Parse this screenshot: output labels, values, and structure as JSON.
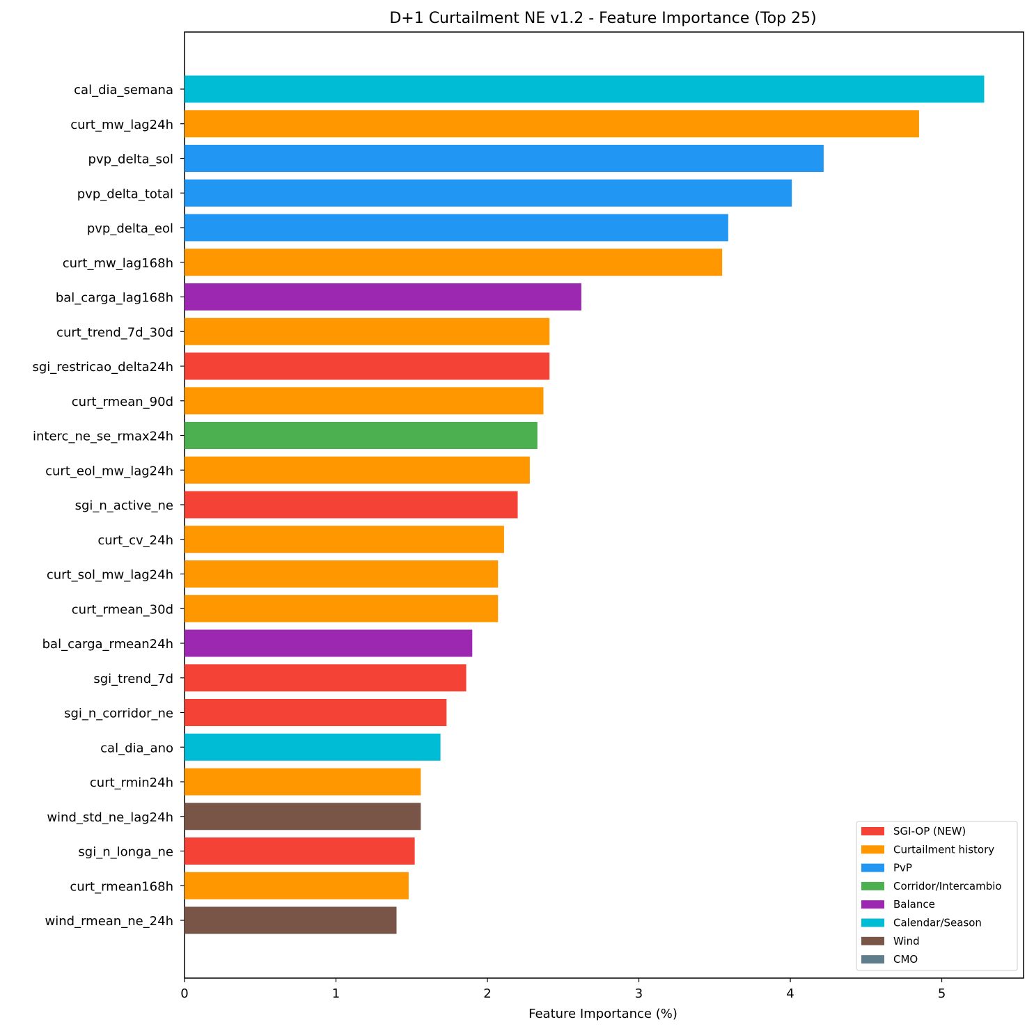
{
  "chart_data": {
    "type": "bar",
    "orientation": "horizontal",
    "title": "D+1 Curtailment NE v1.2 - Feature Importance (Top 25)",
    "xlabel": "Feature Importance (%)",
    "ylabel": "",
    "xlim": [
      0,
      5.54
    ],
    "xticks": [
      "0",
      "1",
      "2",
      "3",
      "4",
      "5"
    ],
    "grid": false,
    "legend_position": "lower-right",
    "categories": [
      "cal_dia_semana",
      "curt_mw_lag24h",
      "pvp_delta_sol",
      "pvp_delta_total",
      "pvp_delta_eol",
      "curt_mw_lag168h",
      "bal_carga_lag168h",
      "curt_trend_7d_30d",
      "sgi_restricao_delta24h",
      "curt_rmean_90d",
      "interc_ne_se_rmax24h",
      "curt_eol_mw_lag24h",
      "sgi_n_active_ne",
      "curt_cv_24h",
      "curt_sol_mw_lag24h",
      "curt_rmean_30d",
      "bal_carga_rmean24h",
      "sgi_trend_7d",
      "sgi_n_corridor_ne",
      "cal_dia_ano",
      "curt_rmin24h",
      "wind_std_ne_lag24h",
      "sgi_n_longa_ne",
      "curt_rmean168h",
      "wind_rmean_ne_24h"
    ],
    "values": [
      5.28,
      4.85,
      4.22,
      4.01,
      3.59,
      3.55,
      2.62,
      2.41,
      2.41,
      2.37,
      2.33,
      2.28,
      2.2,
      2.11,
      2.07,
      2.07,
      1.9,
      1.86,
      1.73,
      1.69,
      1.56,
      1.56,
      1.52,
      1.48,
      1.4
    ],
    "groups": [
      "Calendar/Season",
      "Curtailment history",
      "PvP",
      "PvP",
      "PvP",
      "Curtailment history",
      "Balance",
      "Curtailment history",
      "SGI-OP (NEW)",
      "Curtailment history",
      "Corridor/Intercambio",
      "Curtailment history",
      "SGI-OP (NEW)",
      "Curtailment history",
      "Curtailment history",
      "Curtailment history",
      "Balance",
      "SGI-OP (NEW)",
      "SGI-OP (NEW)",
      "Calendar/Season",
      "Curtailment history",
      "Wind",
      "SGI-OP (NEW)",
      "Curtailment history",
      "Wind"
    ],
    "legend": [
      {
        "label": "SGI-OP (NEW)",
        "color": "#f44336"
      },
      {
        "label": "Curtailment history",
        "color": "#ff9800"
      },
      {
        "label": "PvP",
        "color": "#2196f3"
      },
      {
        "label": "Corridor/Intercambio",
        "color": "#4caf50"
      },
      {
        "label": "Balance",
        "color": "#9c27b0"
      },
      {
        "label": "Calendar/Season",
        "color": "#00bcd4"
      },
      {
        "label": "Wind",
        "color": "#795548"
      },
      {
        "label": "CMO",
        "color": "#607d8b"
      }
    ]
  }
}
